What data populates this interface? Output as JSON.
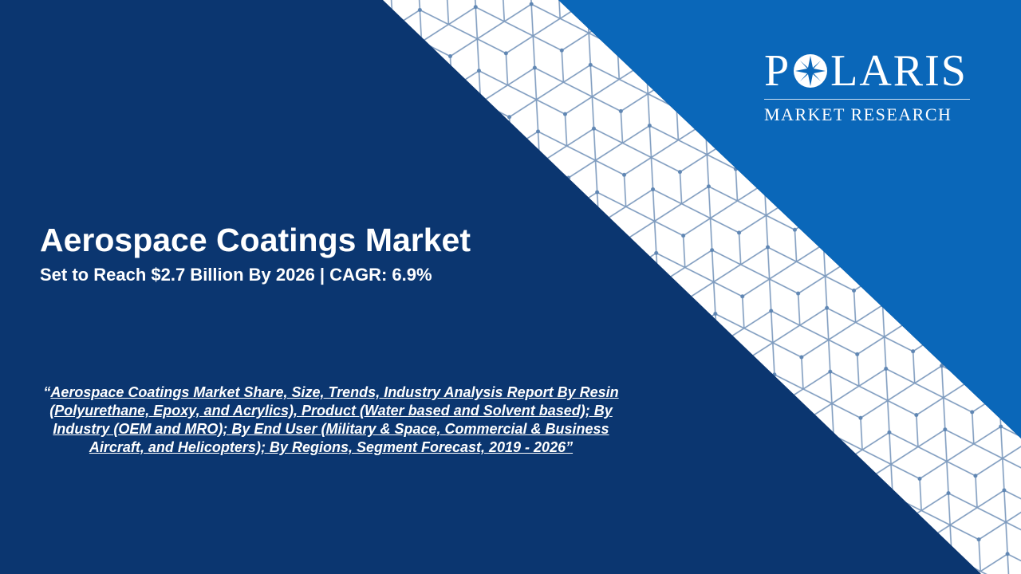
{
  "logo": {
    "name_start": "P",
    "name_end": "LARIS",
    "tagline": "MARKET RESEARCH"
  },
  "title": "Aerospace Coatings Market",
  "subtitle": "Set to Reach $2.7 Billion By 2026 | CAGR: 6.9%",
  "report": {
    "open_quote": "“",
    "link": "Aerospace Coatings Market Share, Size, Trends, Industry Analysis Report By Resin (Polyurethane, Epoxy, and Acrylics), Product (Water based and Solvent based); By Industry (OEM and MRO); By End User (Military & Space, Commercial & Business Aircraft, and Helicopters); By Regions, Segment Forecast, 2019 - 2026”"
  }
}
